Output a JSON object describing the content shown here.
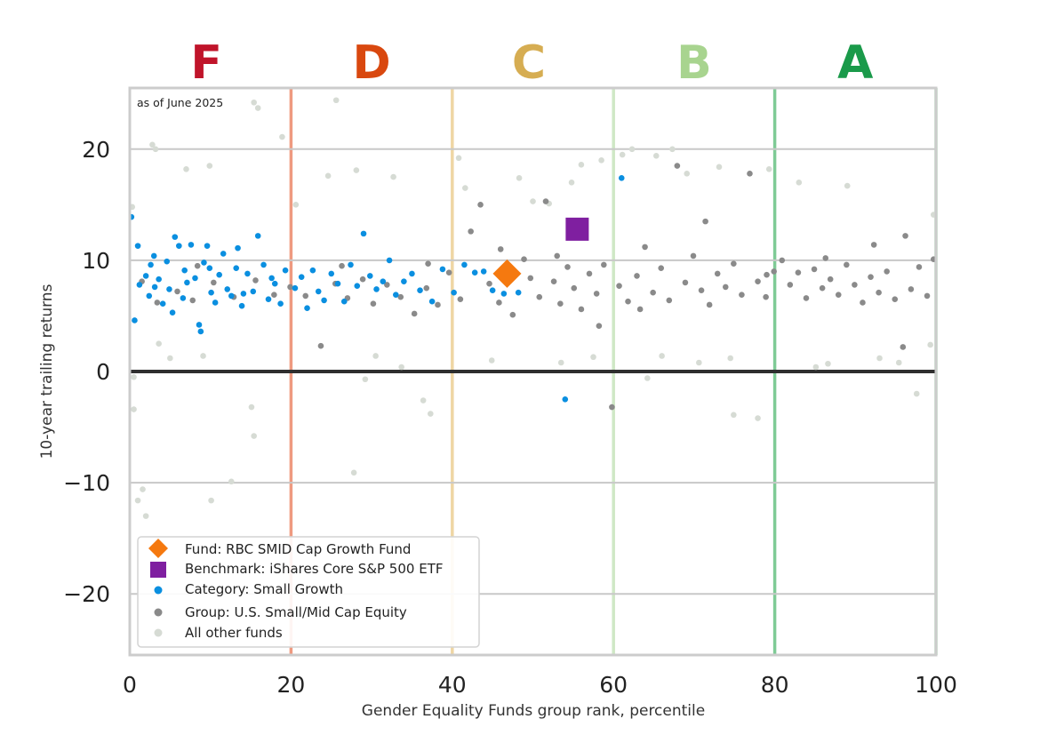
{
  "chart_data": {
    "type": "scatter",
    "note": "as of June 2025",
    "xlabel": "Gender Equality Funds group rank, percentile",
    "ylabel": "10-year trailing returns",
    "xlim": [
      0,
      100
    ],
    "ylim": [
      -25.5,
      25.5
    ],
    "x_ticks": [
      0,
      20,
      40,
      60,
      80,
      100
    ],
    "y_ticks": [
      -20,
      -10,
      0,
      10,
      20
    ],
    "grid": "horizontal",
    "zero_line": 0,
    "legend_position": "lower-left",
    "grade_bands": [
      {
        "label": "F",
        "center": 9.5,
        "color": "#c0142a"
      },
      {
        "label": "D",
        "center": 30,
        "color": "#d9480f"
      },
      {
        "label": "C",
        "center": 49.5,
        "color": "#d6ad52"
      },
      {
        "label": "B",
        "center": 70,
        "color": "#a8d48f"
      },
      {
        "label": "A",
        "center": 90,
        "color": "#1a9a4a"
      }
    ],
    "band_boundaries": [
      {
        "x": 20,
        "color": "#ef9a80"
      },
      {
        "x": 40,
        "color": "#efd6a4"
      },
      {
        "x": 60,
        "color": "#cfe8c6"
      },
      {
        "x": 80,
        "color": "#7fcb96"
      },
      {
        "x": 100,
        "color": "#a8dbb4"
      }
    ],
    "series": [
      {
        "name": "Fund: RBC SMID Cap Growth Fund",
        "marker": "diamond",
        "color": "#f5790f",
        "points": [
          {
            "x": 46.8,
            "y": 8.8
          }
        ]
      },
      {
        "name": "Benchmark: iShares Core S&P 500 ETF",
        "marker": "square",
        "color": "#7f1fa0",
        "points": [
          {
            "x": 55.5,
            "y": 12.8
          }
        ]
      },
      {
        "name": "Category: Small Growth",
        "marker": "circle",
        "color": "#0a8fe0",
        "points": [
          {
            "x": 0.2,
            "y": 13.9
          },
          {
            "x": 1.0,
            "y": 11.3
          },
          {
            "x": 1.2,
            "y": 7.8
          },
          {
            "x": 0.6,
            "y": 4.6
          },
          {
            "x": 2.0,
            "y": 8.6
          },
          {
            "x": 2.6,
            "y": 9.6
          },
          {
            "x": 3.1,
            "y": 7.6
          },
          {
            "x": 3.6,
            "y": 8.3
          },
          {
            "x": 4.1,
            "y": 6.1
          },
          {
            "x": 4.6,
            "y": 9.9
          },
          {
            "x": 5.3,
            "y": 5.3
          },
          {
            "x": 5.6,
            "y": 12.1
          },
          {
            "x": 6.1,
            "y": 11.3
          },
          {
            "x": 6.6,
            "y": 6.6
          },
          {
            "x": 7.1,
            "y": 8.0
          },
          {
            "x": 7.6,
            "y": 11.4
          },
          {
            "x": 8.1,
            "y": 8.4
          },
          {
            "x": 8.6,
            "y": 4.2
          },
          {
            "x": 8.8,
            "y": 3.6
          },
          {
            "x": 9.2,
            "y": 9.8
          },
          {
            "x": 9.6,
            "y": 11.3
          },
          {
            "x": 10.1,
            "y": 7.1
          },
          {
            "x": 10.6,
            "y": 6.2
          },
          {
            "x": 11.1,
            "y": 8.7
          },
          {
            "x": 11.6,
            "y": 10.6
          },
          {
            "x": 12.1,
            "y": 7.4
          },
          {
            "x": 12.6,
            "y": 6.8
          },
          {
            "x": 13.2,
            "y": 9.3
          },
          {
            "x": 13.9,
            "y": 5.9
          },
          {
            "x": 14.6,
            "y": 8.8
          },
          {
            "x": 15.3,
            "y": 7.2
          },
          {
            "x": 15.9,
            "y": 12.2
          },
          {
            "x": 16.6,
            "y": 9.6
          },
          {
            "x": 17.2,
            "y": 6.5
          },
          {
            "x": 18.0,
            "y": 7.9
          },
          {
            "x": 18.7,
            "y": 6.1
          },
          {
            "x": 19.3,
            "y": 9.1
          },
          {
            "x": 20.5,
            "y": 7.5
          },
          {
            "x": 21.3,
            "y": 8.5
          },
          {
            "x": 22.0,
            "y": 5.7
          },
          {
            "x": 22.7,
            "y": 9.1
          },
          {
            "x": 23.4,
            "y": 7.2
          },
          {
            "x": 24.1,
            "y": 6.4
          },
          {
            "x": 25.0,
            "y": 8.8
          },
          {
            "x": 25.8,
            "y": 7.9
          },
          {
            "x": 26.6,
            "y": 6.3
          },
          {
            "x": 27.4,
            "y": 9.6
          },
          {
            "x": 28.2,
            "y": 7.7
          },
          {
            "x": 29.0,
            "y": 12.4
          },
          {
            "x": 29.8,
            "y": 8.6
          },
          {
            "x": 30.6,
            "y": 7.4
          },
          {
            "x": 31.4,
            "y": 8.1
          },
          {
            "x": 32.2,
            "y": 10.0
          },
          {
            "x": 33.0,
            "y": 6.9
          },
          {
            "x": 34.0,
            "y": 8.1
          },
          {
            "x": 35.0,
            "y": 8.8
          },
          {
            "x": 36.0,
            "y": 7.3
          },
          {
            "x": 37.5,
            "y": 6.3
          },
          {
            "x": 38.8,
            "y": 9.2
          },
          {
            "x": 40.2,
            "y": 7.1
          },
          {
            "x": 41.5,
            "y": 9.6
          },
          {
            "x": 42.8,
            "y": 8.9
          },
          {
            "x": 43.9,
            "y": 9.0
          },
          {
            "x": 45.0,
            "y": 7.3
          },
          {
            "x": 46.4,
            "y": 7.0
          },
          {
            "x": 48.2,
            "y": 7.1
          },
          {
            "x": 54.0,
            "y": -2.5
          },
          {
            "x": 61.0,
            "y": 17.4
          },
          {
            "x": 3.0,
            "y": 10.4
          },
          {
            "x": 6.8,
            "y": 9.1
          },
          {
            "x": 13.4,
            "y": 11.1
          },
          {
            "x": 2.4,
            "y": 6.8
          },
          {
            "x": 4.9,
            "y": 7.4
          },
          {
            "x": 9.9,
            "y": 9.3
          },
          {
            "x": 14.1,
            "y": 7.0
          },
          {
            "x": 17.6,
            "y": 8.4
          }
        ]
      },
      {
        "name": "Group: U.S. Small/Mid Cap Equity",
        "marker": "circle",
        "color": "#8a8a8a",
        "points": [
          {
            "x": 1.5,
            "y": 8.1
          },
          {
            "x": 3.4,
            "y": 6.2
          },
          {
            "x": 5.9,
            "y": 7.2
          },
          {
            "x": 7.8,
            "y": 6.4
          },
          {
            "x": 10.4,
            "y": 8.0
          },
          {
            "x": 12.9,
            "y": 6.7
          },
          {
            "x": 15.6,
            "y": 8.2
          },
          {
            "x": 17.9,
            "y": 6.9
          },
          {
            "x": 19.9,
            "y": 7.6
          },
          {
            "x": 21.8,
            "y": 6.8
          },
          {
            "x": 23.7,
            "y": 2.3
          },
          {
            "x": 25.5,
            "y": 7.9
          },
          {
            "x": 27.0,
            "y": 6.6
          },
          {
            "x": 28.9,
            "y": 8.3
          },
          {
            "x": 30.2,
            "y": 6.1
          },
          {
            "x": 31.9,
            "y": 7.8
          },
          {
            "x": 33.6,
            "y": 6.7
          },
          {
            "x": 35.3,
            "y": 5.2
          },
          {
            "x": 36.8,
            "y": 7.5
          },
          {
            "x": 38.2,
            "y": 6.0
          },
          {
            "x": 39.6,
            "y": 8.9
          },
          {
            "x": 41.0,
            "y": 6.5
          },
          {
            "x": 42.3,
            "y": 12.6
          },
          {
            "x": 43.5,
            "y": 15.0
          },
          {
            "x": 44.6,
            "y": 7.9
          },
          {
            "x": 45.8,
            "y": 6.2
          },
          {
            "x": 47.5,
            "y": 5.1
          },
          {
            "x": 48.9,
            "y": 10.1
          },
          {
            "x": 49.7,
            "y": 8.4
          },
          {
            "x": 50.8,
            "y": 6.7
          },
          {
            "x": 51.6,
            "y": 15.3
          },
          {
            "x": 52.6,
            "y": 8.1
          },
          {
            "x": 53.4,
            "y": 6.1
          },
          {
            "x": 54.3,
            "y": 9.4
          },
          {
            "x": 55.1,
            "y": 7.5
          },
          {
            "x": 56.0,
            "y": 5.6
          },
          {
            "x": 57.0,
            "y": 8.8
          },
          {
            "x": 57.9,
            "y": 7.0
          },
          {
            "x": 58.8,
            "y": 9.6
          },
          {
            "x": 59.8,
            "y": -3.2
          },
          {
            "x": 60.7,
            "y": 7.7
          },
          {
            "x": 61.8,
            "y": 6.3
          },
          {
            "x": 62.9,
            "y": 8.6
          },
          {
            "x": 63.9,
            "y": 11.2
          },
          {
            "x": 64.9,
            "y": 7.1
          },
          {
            "x": 65.9,
            "y": 9.3
          },
          {
            "x": 66.9,
            "y": 6.4
          },
          {
            "x": 67.9,
            "y": 18.5
          },
          {
            "x": 68.9,
            "y": 8.0
          },
          {
            "x": 69.9,
            "y": 10.4
          },
          {
            "x": 70.9,
            "y": 7.3
          },
          {
            "x": 71.9,
            "y": 6.0
          },
          {
            "x": 72.9,
            "y": 8.8
          },
          {
            "x": 73.9,
            "y": 7.6
          },
          {
            "x": 74.9,
            "y": 9.7
          },
          {
            "x": 75.9,
            "y": 6.9
          },
          {
            "x": 76.9,
            "y": 17.8
          },
          {
            "x": 77.9,
            "y": 8.1
          },
          {
            "x": 78.9,
            "y": 6.7
          },
          {
            "x": 79.9,
            "y": 9.0
          },
          {
            "x": 80.9,
            "y": 10.0
          },
          {
            "x": 81.9,
            "y": 7.8
          },
          {
            "x": 82.9,
            "y": 8.9
          },
          {
            "x": 83.9,
            "y": 6.6
          },
          {
            "x": 84.9,
            "y": 9.2
          },
          {
            "x": 85.9,
            "y": 7.5
          },
          {
            "x": 86.9,
            "y": 8.3
          },
          {
            "x": 87.9,
            "y": 6.9
          },
          {
            "x": 88.9,
            "y": 9.6
          },
          {
            "x": 89.9,
            "y": 7.8
          },
          {
            "x": 90.9,
            "y": 6.2
          },
          {
            "x": 91.9,
            "y": 8.5
          },
          {
            "x": 92.9,
            "y": 7.1
          },
          {
            "x": 93.9,
            "y": 9.0
          },
          {
            "x": 94.9,
            "y": 6.5
          },
          {
            "x": 95.9,
            "y": 2.2
          },
          {
            "x": 96.9,
            "y": 7.4
          },
          {
            "x": 97.9,
            "y": 9.4
          },
          {
            "x": 98.9,
            "y": 6.8
          },
          {
            "x": 99.7,
            "y": 10.1
          },
          {
            "x": 8.4,
            "y": 9.5
          },
          {
            "x": 26.3,
            "y": 9.5
          },
          {
            "x": 37.0,
            "y": 9.7
          },
          {
            "x": 46.0,
            "y": 11.0
          },
          {
            "x": 53.0,
            "y": 10.4
          },
          {
            "x": 63.3,
            "y": 5.6
          },
          {
            "x": 71.4,
            "y": 13.5
          },
          {
            "x": 79.0,
            "y": 8.7
          },
          {
            "x": 86.3,
            "y": 10.2
          },
          {
            "x": 92.3,
            "y": 11.4
          },
          {
            "x": 96.2,
            "y": 12.2
          },
          {
            "x": 58.2,
            "y": 4.1
          }
        ]
      },
      {
        "name": "All other funds",
        "marker": "circle",
        "color": "#d6dbd4",
        "points": [
          {
            "x": 0.5,
            "y": -0.5
          },
          {
            "x": 0.5,
            "y": -3.4
          },
          {
            "x": 1.0,
            "y": -11.6
          },
          {
            "x": 1.6,
            "y": -10.6
          },
          {
            "x": 2.0,
            "y": -13.0
          },
          {
            "x": 2.8,
            "y": 20.4
          },
          {
            "x": 3.2,
            "y": 20.0
          },
          {
            "x": 3.6,
            "y": 2.5
          },
          {
            "x": 5.0,
            "y": 1.2
          },
          {
            "x": 7.0,
            "y": 18.2
          },
          {
            "x": 9.1,
            "y": 1.4
          },
          {
            "x": 9.9,
            "y": 18.5
          },
          {
            "x": 10.1,
            "y": -11.6
          },
          {
            "x": 12.6,
            "y": -9.9
          },
          {
            "x": 15.1,
            "y": -3.2
          },
          {
            "x": 15.4,
            "y": -5.8
          },
          {
            "x": 15.4,
            "y": 24.2
          },
          {
            "x": 15.9,
            "y": 23.7
          },
          {
            "x": 18.9,
            "y": 21.1
          },
          {
            "x": 20.6,
            "y": 15.0
          },
          {
            "x": 24.6,
            "y": 17.6
          },
          {
            "x": 25.6,
            "y": 24.4
          },
          {
            "x": 27.8,
            "y": -9.1
          },
          {
            "x": 28.1,
            "y": 18.1
          },
          {
            "x": 29.2,
            "y": -0.7
          },
          {
            "x": 30.5,
            "y": 1.4
          },
          {
            "x": 32.7,
            "y": 17.5
          },
          {
            "x": 33.7,
            "y": 0.4
          },
          {
            "x": 36.4,
            "y": -2.6
          },
          {
            "x": 37.3,
            "y": -3.8
          },
          {
            "x": 40.8,
            "y": 19.2
          },
          {
            "x": 41.6,
            "y": 16.5
          },
          {
            "x": 44.9,
            "y": 1.0
          },
          {
            "x": 48.3,
            "y": 17.4
          },
          {
            "x": 50.0,
            "y": 15.3
          },
          {
            "x": 52.0,
            "y": 15.1
          },
          {
            "x": 53.5,
            "y": 0.8
          },
          {
            "x": 54.8,
            "y": 17.0
          },
          {
            "x": 56.0,
            "y": 18.6
          },
          {
            "x": 57.5,
            "y": 1.3
          },
          {
            "x": 58.5,
            "y": 19.0
          },
          {
            "x": 61.1,
            "y": 19.5
          },
          {
            "x": 62.3,
            "y": 20.0
          },
          {
            "x": 64.2,
            "y": -0.6
          },
          {
            "x": 65.3,
            "y": 19.4
          },
          {
            "x": 66.0,
            "y": 1.4
          },
          {
            "x": 67.3,
            "y": 20.0
          },
          {
            "x": 69.1,
            "y": 17.8
          },
          {
            "x": 70.6,
            "y": 0.8
          },
          {
            "x": 73.1,
            "y": 18.4
          },
          {
            "x": 74.5,
            "y": 1.2
          },
          {
            "x": 74.9,
            "y": -3.9
          },
          {
            "x": 77.9,
            "y": -4.2
          },
          {
            "x": 79.3,
            "y": 18.2
          },
          {
            "x": 83.0,
            "y": 17.0
          },
          {
            "x": 85.1,
            "y": 0.4
          },
          {
            "x": 86.6,
            "y": 0.7
          },
          {
            "x": 89.0,
            "y": 16.7
          },
          {
            "x": 93.0,
            "y": 1.2
          },
          {
            "x": 95.4,
            "y": 0.8
          },
          {
            "x": 97.6,
            "y": -2.0
          },
          {
            "x": 99.3,
            "y": 2.4
          },
          {
            "x": 99.7,
            "y": 14.1
          },
          {
            "x": 0.3,
            "y": 14.8
          }
        ]
      }
    ]
  }
}
